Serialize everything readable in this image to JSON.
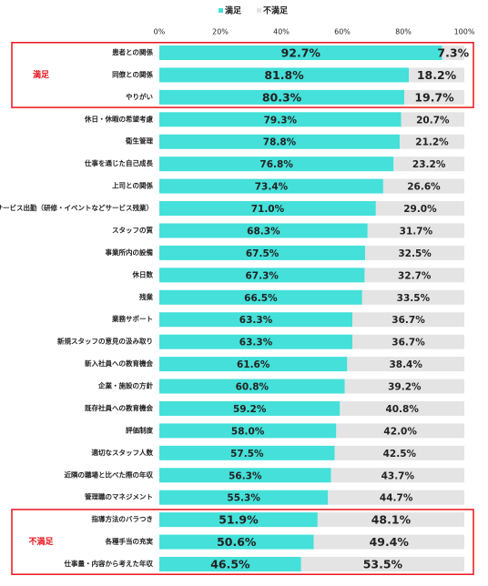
{
  "chart_data": {
    "type": "stacked-bar-horizontal",
    "categories": [
      "患者との関係",
      "同僚との関係",
      "やりがい",
      "休日・休暇の希望考慮",
      "衛生管理",
      "仕事を通じた自己成長",
      "上司との関係",
      "サービス出勤（研修・イベントなどサービス残業）",
      "スタッフの質",
      "事業所内の設備",
      "休日数",
      "残業",
      "業務サポート",
      "新規スタッフの意見の汲み取り",
      "新入社員への教育機会",
      "企業・施設の方針",
      "既存社員への教育機会",
      "評価制度",
      "適切なスタッフ人数",
      "近隣の職場と比べた際の年収",
      "管理職のマネジメント",
      "指導方法のバラつき",
      "各種手当の充実",
      "仕事量・内容から考えた年収"
    ],
    "series": [
      {
        "name": "満足",
        "color": "#44e0d9",
        "values": [
          92.7,
          81.8,
          80.3,
          79.3,
          78.8,
          76.8,
          73.4,
          71.0,
          68.3,
          67.5,
          67.3,
          66.5,
          63.3,
          63.3,
          61.6,
          60.8,
          59.2,
          58.0,
          57.5,
          56.3,
          55.3,
          51.9,
          50.6,
          46.5
        ],
        "value_labels": [
          "92.7%",
          "81.8%",
          "80.3%",
          "79.3%",
          "78.8%",
          "76.8%",
          "73.4%",
          "71.0%",
          "68.3%",
          "67.5%",
          "67.3%",
          "66.5%",
          "63.3%",
          "63.3%",
          "61.6%",
          "60.8%",
          "59.2%",
          "58.0%",
          "57.5%",
          "56.3%",
          "55.3%",
          "51.9%",
          "50.6%",
          "46.5%"
        ]
      },
      {
        "name": "不満足",
        "color": "#e4e4e4",
        "values": [
          7.3,
          18.2,
          19.7,
          20.7,
          21.2,
          23.2,
          26.6,
          29.0,
          31.7,
          32.5,
          32.7,
          33.5,
          36.7,
          36.7,
          38.4,
          39.2,
          40.8,
          42.0,
          42.5,
          43.7,
          44.7,
          48.1,
          49.4,
          53.5
        ],
        "value_labels": [
          "7.3%",
          "18.2%",
          "19.7%",
          "20.7%",
          "21.2%",
          "23.2%",
          "26.6%",
          "29.0%",
          "31.7%",
          "32.5%",
          "32.7%",
          "33.5%",
          "36.7%",
          "36.7%",
          "38.4%",
          "39.2%",
          "40.8%",
          "42.0%",
          "42.5%",
          "43.7%",
          "44.7%",
          "48.1%",
          "49.4%",
          "53.5%"
        ]
      }
    ],
    "xlim": [
      0,
      100
    ],
    "xticks": [
      {
        "value": 0,
        "label": "0%"
      },
      {
        "value": 20,
        "label": "20%"
      },
      {
        "value": 40,
        "label": "40%"
      },
      {
        "value": 60,
        "label": "60%"
      },
      {
        "value": 80,
        "label": "80%"
      },
      {
        "value": 100,
        "label": "100%"
      }
    ],
    "annotations": [
      "満足",
      "不満足"
    ],
    "annotation_color": "#e8141c"
  }
}
